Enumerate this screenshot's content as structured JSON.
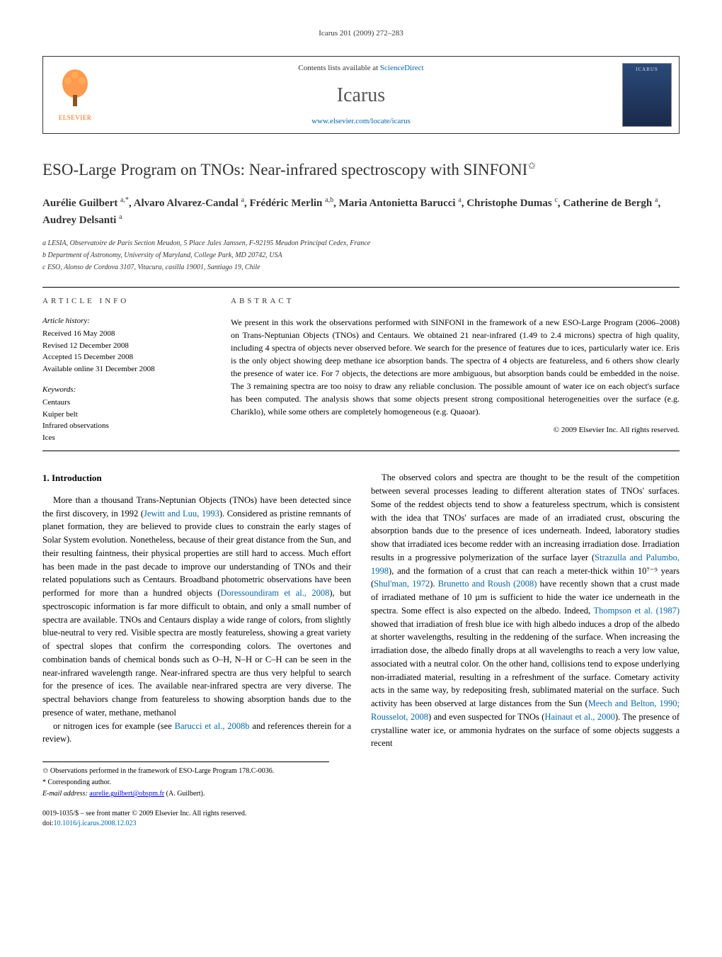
{
  "journal_ref": "Icarus 201 (2009) 272–283",
  "contents_label": "Contents lists available at ",
  "contents_link": "ScienceDirect",
  "journal_name": "Icarus",
  "homepage_url": "www.elsevier.com/locate/icarus",
  "elsevier": "ELSEVIER",
  "title": "ESO-Large Program on TNOs: Near-infrared spectroscopy with SINFONI",
  "title_note_marker": "✩",
  "authors_html": "Aurélie Guilbert <sup>a,*</sup>, Alvaro Alvarez-Candal <sup>a</sup>, Frédéric Merlin <sup>a,b</sup>, Maria Antonietta Barucci <sup>a</sup>, Christophe Dumas <sup>c</sup>, Catherine de Bergh <sup>a</sup>, Audrey Delsanti <sup>a</sup>",
  "affiliations": [
    "a LESIA, Observatoire de Paris Section Meudon, 5 Place Jules Janssen, F-92195 Meudon Principal Cedex, France",
    "b Department of Astronomy, University of Maryland, College Park, MD 20742, USA",
    "c ESO, Alonso de Cordova 3107, Vitacura, casilla 19001, Santiago 19, Chile"
  ],
  "article_info_label": "ARTICLE INFO",
  "abstract_label": "ABSTRACT",
  "history_label": "Article history:",
  "history": [
    "Received 16 May 2008",
    "Revised 12 December 2008",
    "Accepted 15 December 2008",
    "Available online 31 December 2008"
  ],
  "keywords_label": "Keywords:",
  "keywords": [
    "Centaurs",
    "Kuiper belt",
    "Infrared observations",
    "Ices"
  ],
  "abstract_text": "We present in this work the observations performed with SINFONI in the framework of a new ESO-Large Program (2006–2008) on Trans-Neptunian Objects (TNOs) and Centaurs. We obtained 21 near-infrared (1.49 to 2.4 microns) spectra of high quality, including 4 spectra of objects never observed before. We search for the presence of features due to ices, particularly water ice. Eris is the only object showing deep methane ice absorption bands. The spectra of 4 objects are featureless, and 6 others show clearly the presence of water ice. For 7 objects, the detections are more ambiguous, but absorption bands could be embedded in the noise. The 3 remaining spectra are too noisy to draw any reliable conclusion. The possible amount of water ice on each object's surface has been computed. The analysis shows that some objects present strong compositional heterogeneities over the surface (e.g. Chariklo), while some others are completely homogeneous (e.g. Quaoar).",
  "copyright": "© 2009 Elsevier Inc. All rights reserved.",
  "intro_heading": "1. Introduction",
  "para1": "More than a thousand Trans-Neptunian Objects (TNOs) have been detected since the first discovery, in 1992 (Jewitt and Luu, 1993). Considered as pristine remnants of planet formation, they are believed to provide clues to constrain the early stages of Solar System evolution. Nonetheless, because of their great distance from the Sun, and their resulting faintness, their physical properties are still hard to access. Much effort has been made in the past decade to improve our understanding of TNOs and their related populations such as Centaurs. Broadband photometric observations have been performed for more than a hundred objects (Doressoundiram et al., 2008), but spectroscopic information is far more difficult to obtain, and only a small number of spectra are available. TNOs and Centaurs display a wide range of colors, from slightly blue-neutral to very red. Visible spectra are mostly featureless, showing a great variety of spectral slopes that confirm the corresponding colors. The overtones and combination bands of chemical bonds such as O–H, N–H or C–H can be seen in the near-infrared wavelength range. Near-infrared spectra are thus very helpful to search for the presence of ices. The available near-infrared spectra are very diverse. The spectral behaviors change from featureless to showing absorption bands due to the presence of water, methane, methanol",
  "para2": "or nitrogen ices for example (see Barucci et al., 2008b and references therein for a review).",
  "para3": "The observed colors and spectra are thought to be the result of the competition between several processes leading to different alteration states of TNOs' surfaces. Some of the reddest objects tend to show a featureless spectrum, which is consistent with the idea that TNOs' surfaces are made of an irradiated crust, obscuring the absorption bands due to the presence of ices underneath. Indeed, laboratory studies show that irradiated ices become redder with an increasing irradiation dose. Irradiation results in a progressive polymerization of the surface layer (Strazulla and Palumbo, 1998), and the formation of a crust that can reach a meter-thick within 10⁷⁻⁹ years (Shul'man, 1972). Brunetto and Roush (2008) have recently shown that a crust made of irradiated methane of 10 µm is sufficient to hide the water ice underneath in the spectra. Some effect is also expected on the albedo. Indeed, Thompson et al. (1987) showed that irradiation of fresh blue ice with high albedo induces a drop of the albedo at shorter wavelengths, resulting in the reddening of the surface. When increasing the irradiation dose, the albedo finally drops at all wavelengths to reach a very low value, associated with a neutral color. On the other hand, collisions tend to expose underlying non-irradiated material, resulting in a refreshment of the surface. Cometary activity acts in the same way, by redepositing fresh, sublimated material on the surface. Such activity has been observed at large distances from the Sun (Meech and Belton, 1990; Rousselot, 2008) and even suspected for TNOs (Hainaut et al., 2000). The presence of crystalline water ice, or ammonia hydrates on the surface of some objects suggests a recent",
  "footnote_star": "✩ Observations performed in the framework of ESO-Large Program 178.C-0036.",
  "footnote_corr": "* Corresponding author.",
  "footnote_email_label": "E-mail address: ",
  "footnote_email": "aurelie.guilbert@obspm.fr",
  "footnote_email_tail": " (A. Guilbert).",
  "footer_issn": "0019-1035/$ – see front matter © 2009 Elsevier Inc. All rights reserved.",
  "footer_doi_label": "doi:",
  "footer_doi": "10.1016/j.icarus.2008.12.023",
  "ref_links": {
    "jewitt": "Jewitt and Luu, 1993",
    "doress": "Doressoundiram et al., 2008",
    "barucci": "Barucci et al., 2008b",
    "strazulla": "Strazulla and Palumbo, 1998",
    "shulman": "Shul'man, 1972",
    "brunetto": "Brunetto and Roush (2008)",
    "thompson": "Thompson et al. (1987)",
    "meech": "Meech and Belton, 1990; Rousselot, 2008",
    "hainaut": "Hainaut et al., 2000"
  }
}
